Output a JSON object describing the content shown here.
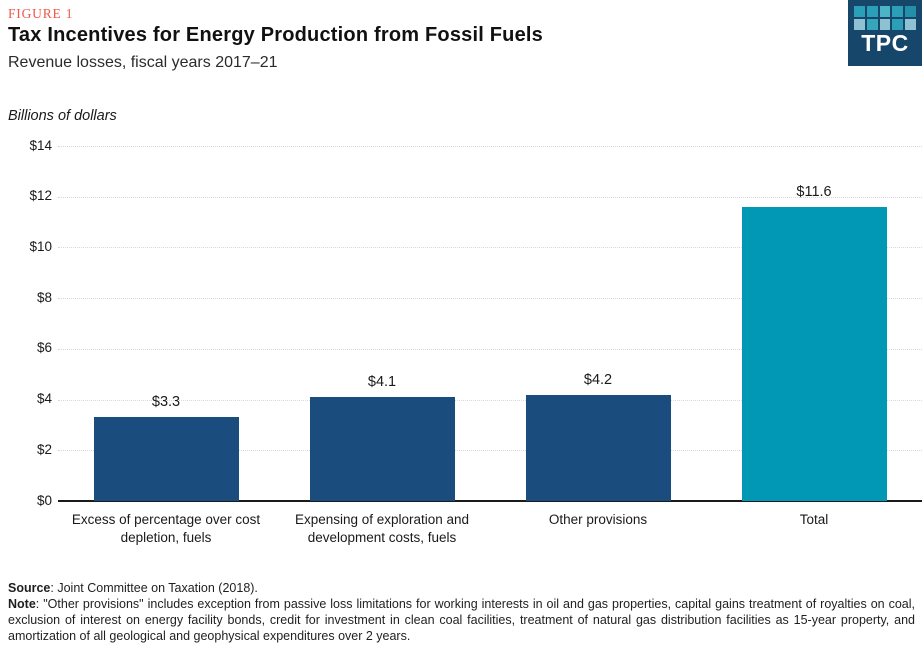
{
  "figure_label": "FIGURE 1",
  "title": "Tax Incentives for Energy Production from Fossil Fuels",
  "subtitle": "Revenue losses, fiscal years 2017–21",
  "units_label": "Billions of dollars",
  "logo": {
    "text": "TPC",
    "bg_color": "#16476b",
    "square_colors": [
      "#2b9fb7",
      "#2b9fb7",
      "#4db3c6",
      "#2b9fb7",
      "#238fa9",
      "#8ec2d2",
      "#35a6bc",
      "#8ec2d2",
      "#2b9fb7",
      "#8ec2d2"
    ]
  },
  "chart_data": {
    "type": "bar",
    "title": "Tax Incentives for Energy Production from Fossil Fuels",
    "subtitle": "Revenue losses, fiscal years 2017–21",
    "categories": [
      "Excess of percentage over cost depletion, fuels",
      "Expensing of exploration and development costs, fuels",
      "Other provisions",
      "Total"
    ],
    "values": [
      3.3,
      4.1,
      4.2,
      11.6
    ],
    "value_labels": [
      "$3.3",
      "$4.1",
      "$4.2",
      "$11.6"
    ],
    "bar_colors": [
      "#1a4d7e",
      "#1a4d7e",
      "#1a4d7e",
      "#0098b5"
    ],
    "xlabel": "",
    "ylabel": "Billions of dollars",
    "ylim": [
      0,
      14
    ],
    "ytick_interval": 2,
    "ytick_labels": [
      "$0",
      "$2",
      "$4",
      "$6",
      "$8",
      "$10",
      "$12",
      "$14"
    ],
    "grid": "horizontal-dotted",
    "legend": "none"
  },
  "colors": {
    "figure_label_red": "#f0584a",
    "bar_navy": "#1a4d7e",
    "bar_teal": "#0098b5",
    "gridline": "#d9d9d9",
    "axis": "#1a1a1a"
  },
  "footer": {
    "source_label": "Source",
    "source_text": ": Joint Committee on Taxation (2018).",
    "note_label": "Note",
    "note_text": ": \"Other provisions\" includes exception from passive loss limitations for working interests in oil and gas properties, capital gains treatment of royalties on coal, exclusion of interest on energy facility bonds, credit for investment in clean coal facilities, treatment of natural gas distribution facilities as 15-year property, and amortization of all geological and geophysical expenditures over 2 years."
  }
}
